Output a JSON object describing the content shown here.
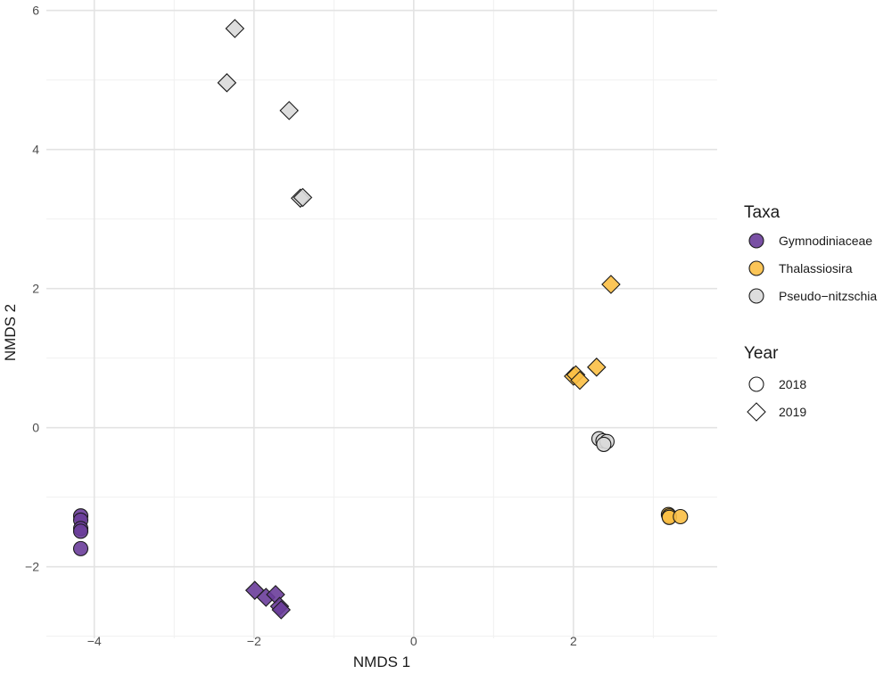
{
  "chart_data": {
    "type": "scatter",
    "title": "",
    "xlabel": "NMDS 1",
    "ylabel": "NMDS 2",
    "xlim": [
      -4.6,
      3.8
    ],
    "ylim": [
      -3.03,
      6.15
    ],
    "x_ticks": [
      -4,
      -2,
      0,
      2
    ],
    "x_tick_labels": [
      "−4",
      "−2",
      "0",
      "2"
    ],
    "y_ticks": [
      -2,
      0,
      2,
      4,
      6
    ],
    "y_tick_labels": [
      "−2",
      "0",
      "2",
      "4",
      "6"
    ],
    "grid": true,
    "legend_position": "right",
    "legends": {
      "taxa": {
        "title": "Taxa",
        "items": [
          {
            "label": "Gymnodiniaceae",
            "color": "#6a3d9a"
          },
          {
            "label": "Thalassiosira",
            "color": "#fbbf45"
          },
          {
            "label": "Pseudo−nitzschia",
            "color": "#d9d9d9"
          }
        ]
      },
      "year": {
        "title": "Year",
        "items": [
          {
            "label": "2018",
            "shape": "circle"
          },
          {
            "label": "2019",
            "shape": "diamond"
          }
        ]
      }
    },
    "colors": {
      "Gymnodiniaceae": "#6a3d9a",
      "Thalassiosira": "#fbbf45",
      "Pseudo-nitzschia": "#d9d9d9"
    },
    "shapes": {
      "2018": "circle",
      "2019": "diamond"
    },
    "series": [
      {
        "name": "Gymnodiniaceae 2018",
        "taxa": "Gymnodiniaceae",
        "year": "2018",
        "points": [
          {
            "x": -4.17,
            "y": -1.27
          },
          {
            "x": -4.17,
            "y": -1.33
          },
          {
            "x": -4.17,
            "y": -1.45
          },
          {
            "x": -4.17,
            "y": -1.49
          },
          {
            "x": -4.17,
            "y": -1.74
          }
        ]
      },
      {
        "name": "Gymnodiniaceae 2019",
        "taxa": "Gymnodiniaceae",
        "year": "2019",
        "points": [
          {
            "x": -1.99,
            "y": -2.34
          },
          {
            "x": -1.85,
            "y": -2.44
          },
          {
            "x": -1.73,
            "y": -2.4
          },
          {
            "x": -1.68,
            "y": -2.57
          },
          {
            "x": -1.66,
            "y": -2.62
          }
        ]
      },
      {
        "name": "Thalassiosira 2018",
        "taxa": "Thalassiosira",
        "year": "2018",
        "points": [
          {
            "x": 3.19,
            "y": -1.25
          },
          {
            "x": 3.2,
            "y": -1.27
          },
          {
            "x": 3.2,
            "y": -1.29
          },
          {
            "x": 3.34,
            "y": -1.28
          }
        ]
      },
      {
        "name": "Thalassiosira 2019",
        "taxa": "Thalassiosira",
        "year": "2019",
        "points": [
          {
            "x": 2.47,
            "y": 2.06
          },
          {
            "x": 2.29,
            "y": 0.87
          },
          {
            "x": 2.0,
            "y": 0.74
          },
          {
            "x": 2.03,
            "y": 0.76
          },
          {
            "x": 2.08,
            "y": 0.68
          }
        ]
      },
      {
        "name": "Pseudo-nitzschia 2018",
        "taxa": "Pseudo-nitzschia",
        "year": "2018",
        "points": [
          {
            "x": 2.32,
            "y": -0.16
          },
          {
            "x": 2.37,
            "y": -0.19
          },
          {
            "x": 2.42,
            "y": -0.2
          },
          {
            "x": 2.38,
            "y": -0.24
          }
        ]
      },
      {
        "name": "Pseudo-nitzschia 2019",
        "taxa": "Pseudo-nitzschia",
        "year": "2019",
        "points": [
          {
            "x": -2.24,
            "y": 5.74
          },
          {
            "x": -2.34,
            "y": 4.96
          },
          {
            "x": -1.56,
            "y": 4.56
          },
          {
            "x": -1.42,
            "y": 3.3
          },
          {
            "x": -1.39,
            "y": 3.31
          }
        ]
      }
    ]
  }
}
